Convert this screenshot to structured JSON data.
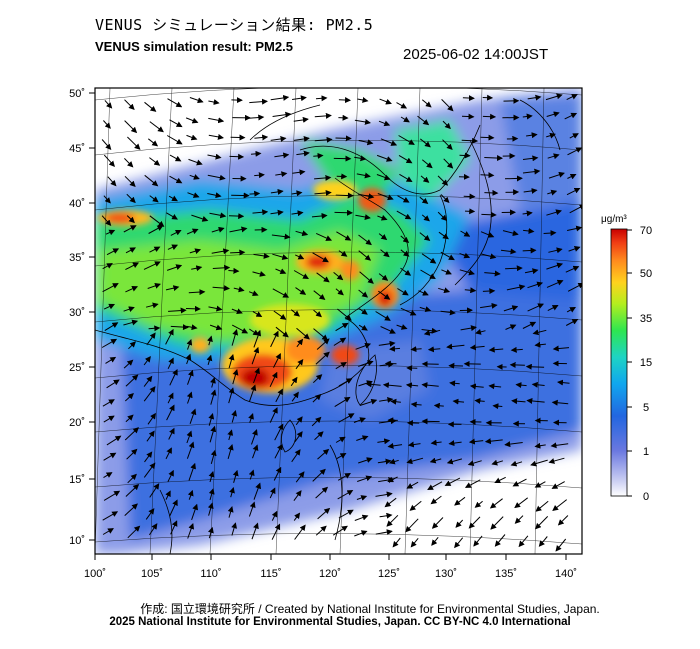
{
  "title_jp": "VENUS シミュレーション結果: PM2.5",
  "title_en": "VENUS simulation result: PM2.5",
  "timestamp": "2025-06-02 14:00JST",
  "credit": "作成: 国立環境研究所 / Created by National Institute for Environmental Studies, Japan.",
  "license": "2025 National Institute for Environmental Studies, Japan. CC BY-NC 4.0 International",
  "map": {
    "lat_labels": [
      "50˚",
      "45˚",
      "40˚",
      "35˚",
      "30˚",
      "25˚",
      "20˚",
      "15˚",
      "10˚"
    ],
    "lon_labels": [
      "100˚",
      "105˚",
      "110˚",
      "115˚",
      "120˚",
      "125˚",
      "130˚",
      "135˚",
      "140˚"
    ]
  },
  "colorbar": {
    "unit": "μg/m³",
    "ticks": [
      "70",
      "50",
      "35",
      "15",
      "5",
      "1",
      "0"
    ],
    "colors": [
      "#ffffff",
      "#8c96e6",
      "#2f62e0",
      "#0aa0f0",
      "#1ed2c8",
      "#2ee650",
      "#b4ee1e",
      "#ffd21e",
      "#ff8c1e",
      "#f03c14",
      "#c80000"
    ]
  },
  "layers": {
    "concentration_field": "PM2.5",
    "wind_vectors": true,
    "coastlines": true,
    "graticule": true
  }
}
